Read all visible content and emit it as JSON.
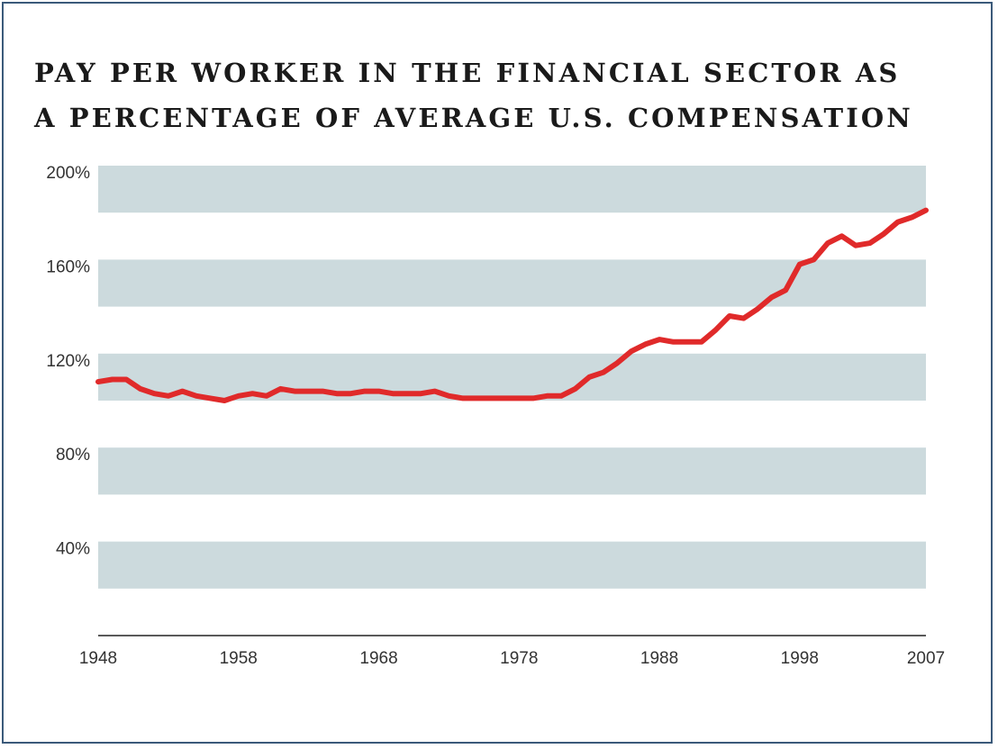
{
  "chart_data": {
    "type": "line",
    "title_line1": "PAY PER WORKER IN THE FINANCIAL SECTOR AS",
    "title_line2": "A PERCENTAGE OF AVERAGE U.S. COMPENSATION",
    "xlabel": "",
    "ylabel": "",
    "xlim": [
      1948,
      2007
    ],
    "ylim": [
      0,
      200
    ],
    "x_ticks": [
      1948,
      1958,
      1968,
      1978,
      1988,
      1998,
      2007
    ],
    "x_tick_labels": [
      "1948",
      "1958",
      "1968",
      "1978",
      "1988",
      "1998",
      "2007"
    ],
    "y_ticks": [
      200,
      160,
      120,
      80,
      40
    ],
    "y_tick_labels": [
      "200%",
      "160%",
      "120%",
      "80%",
      "40%"
    ],
    "bands": [
      [
        180,
        200
      ],
      [
        140,
        160
      ],
      [
        100,
        120
      ],
      [
        60,
        80
      ],
      [
        20,
        40
      ]
    ],
    "series": [
      {
        "name": "Financial sector pay as % of average U.S. compensation",
        "color": "#e02a2a",
        "x": [
          1948,
          1949,
          1950,
          1951,
          1952,
          1953,
          1954,
          1955,
          1956,
          1957,
          1958,
          1959,
          1960,
          1961,
          1962,
          1963,
          1964,
          1965,
          1966,
          1967,
          1968,
          1969,
          1970,
          1971,
          1972,
          1973,
          1974,
          1975,
          1976,
          1977,
          1978,
          1979,
          1980,
          1981,
          1982,
          1983,
          1984,
          1985,
          1986,
          1987,
          1988,
          1989,
          1990,
          1991,
          1992,
          1993,
          1994,
          1995,
          1996,
          1997,
          1998,
          1999,
          2000,
          2001,
          2002,
          2003,
          2004,
          2005,
          2006,
          2007
        ],
        "values": [
          108,
          109,
          109,
          105,
          103,
          102,
          104,
          102,
          101,
          100,
          102,
          103,
          102,
          105,
          104,
          104,
          104,
          103,
          103,
          104,
          104,
          103,
          103,
          103,
          104,
          102,
          101,
          101,
          101,
          101,
          101,
          101,
          102,
          102,
          105,
          110,
          112,
          116,
          121,
          124,
          126,
          125,
          125,
          125,
          130,
          136,
          135,
          139,
          144,
          147,
          158,
          160,
          167,
          170,
          166,
          167,
          171,
          176,
          178,
          181
        ]
      }
    ]
  }
}
